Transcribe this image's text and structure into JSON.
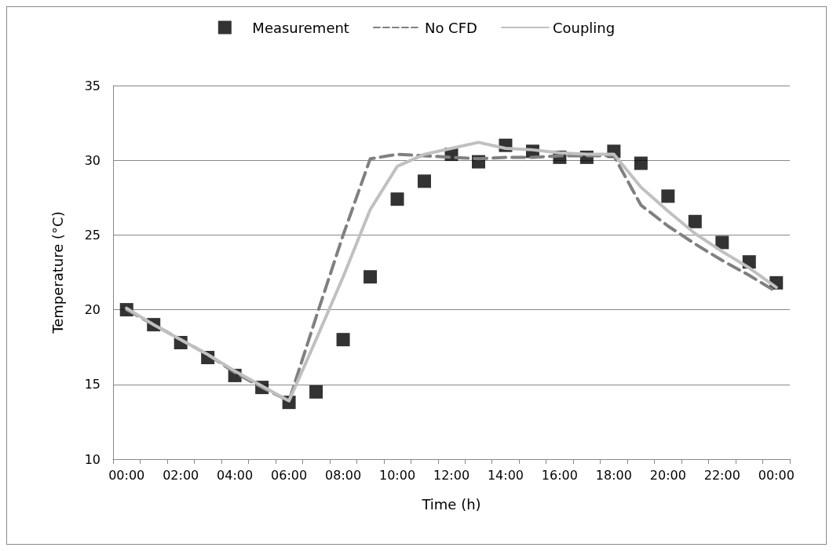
{
  "chart_data": {
    "type": "line",
    "xlabel": "Time (h)",
    "ylabel": "Temperature (°C)",
    "categories": [
      "00:00",
      null,
      "02:00",
      null,
      "04:00",
      null,
      "06:00",
      null,
      "08:00",
      null,
      "10:00",
      null,
      "12:00",
      null,
      "14:00",
      null,
      "16:00",
      null,
      "18:00",
      null,
      "20:00",
      null,
      "22:00",
      null,
      "00:00"
    ],
    "series": [
      {
        "name": "Measurement",
        "type": "scatter",
        "marker": "square",
        "color": "#000000",
        "values": [
          20,
          19,
          17.8,
          16.8,
          15.6,
          14.8,
          13.8,
          14.5,
          18,
          22.2,
          27.4,
          28.6,
          30.4,
          29.9,
          31,
          30.6,
          30.2,
          30.2,
          30.6,
          29.8,
          27.6,
          25.9,
          24.5,
          23.2,
          21.8
        ]
      },
      {
        "name": "No CFD",
        "line_style": "dashed",
        "marker": "none",
        "color": "#808080",
        "values": [
          20,
          19,
          18,
          17,
          15.8,
          14.8,
          13.9,
          19.5,
          25,
          30.1,
          30.4,
          30.3,
          30.2,
          30.1,
          30.2,
          30.2,
          30.3,
          30.3,
          30.3,
          27,
          25.6,
          24.4,
          23.3,
          22.3,
          21.2
        ]
      },
      {
        "name": "Coupling",
        "line_style": "solid",
        "marker": "none",
        "color": "#c0c0c0",
        "values": [
          20.1,
          19,
          18,
          17,
          15.9,
          14.9,
          13.9,
          18,
          22.2,
          26.7,
          29.6,
          30.4,
          30.8,
          31.2,
          30.8,
          30.7,
          30.5,
          30.4,
          30.4,
          28.2,
          26.6,
          25.1,
          23.9,
          22.8,
          21.5
        ]
      }
    ],
    "ylim": [
      10,
      35
    ],
    "yticks": [
      10,
      15,
      20,
      25,
      30,
      35
    ],
    "grid": "y",
    "legend": "top"
  }
}
